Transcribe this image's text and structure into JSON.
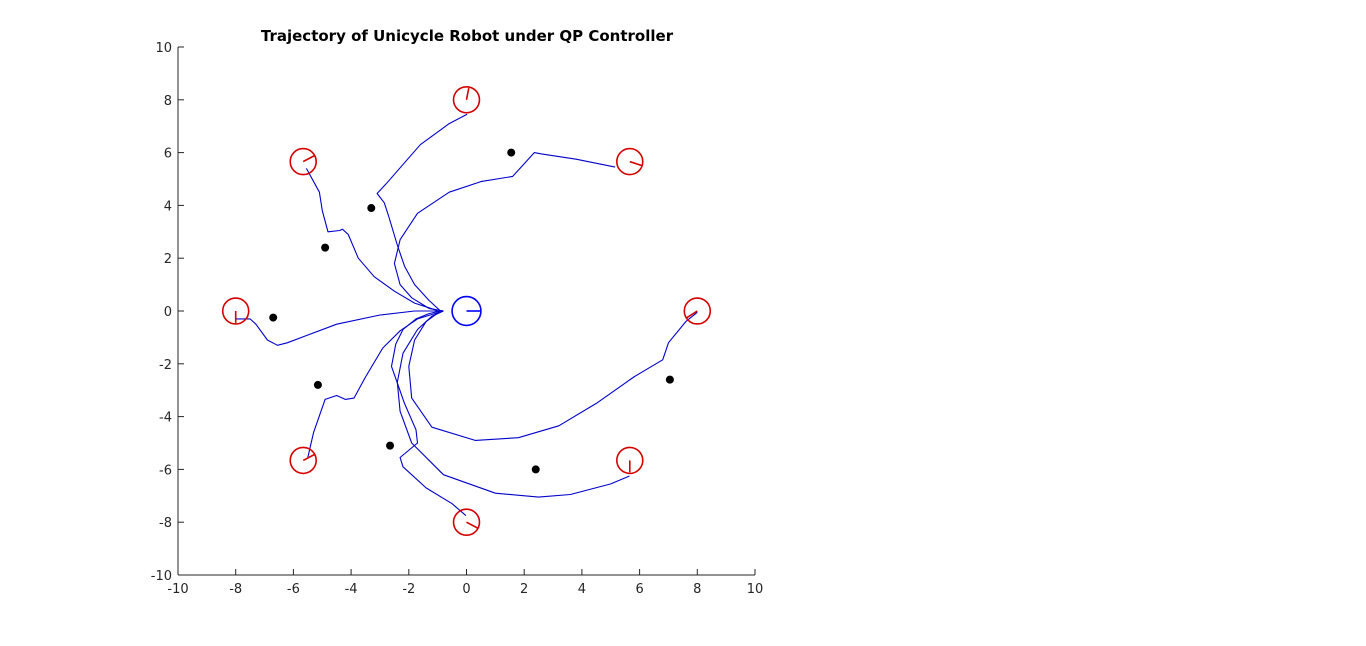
{
  "chart_data": {
    "type": "scatter",
    "title": "Trajectory of Unicycle Robot under QP Controller",
    "xlabel": "",
    "ylabel": "",
    "xlim": [
      -10,
      10
    ],
    "ylim": [
      -10,
      10
    ],
    "xticks": [
      "-10",
      "-8",
      "-6",
      "-4",
      "-2",
      "0",
      "2",
      "4",
      "6",
      "8",
      "10"
    ],
    "yticks": [
      "10",
      "8",
      "6",
      "4",
      "2",
      "0",
      "-2",
      "-4",
      "-6",
      "-8",
      "-10"
    ],
    "grid": false,
    "colors": {
      "trajectory": "#0000cc",
      "start_robot": "#d40000",
      "goal_robot": "#0000ff",
      "obstacle": "#000000"
    },
    "goal": {
      "x": 0,
      "y": 0,
      "radius": 0.5,
      "heading_deg": 0
    },
    "starts": [
      {
        "x": 0,
        "y": 8,
        "heading_deg": 80
      },
      {
        "x": 5.66,
        "y": 5.66,
        "heading_deg": -20
      },
      {
        "x": 8,
        "y": 0,
        "heading_deg": 215
      },
      {
        "x": 5.66,
        "y": -5.66,
        "heading_deg": -90
      },
      {
        "x": 0,
        "y": -8,
        "heading_deg": -30
      },
      {
        "x": -5.66,
        "y": -5.66,
        "heading_deg": 30
      },
      {
        "x": -8,
        "y": 0,
        "heading_deg": -90
      },
      {
        "x": -5.66,
        "y": 5.66,
        "heading_deg": 30
      }
    ],
    "obstacles": [
      {
        "x": 1.55,
        "y": 6.0
      },
      {
        "x": -3.3,
        "y": 3.9
      },
      {
        "x": -4.9,
        "y": 2.4
      },
      {
        "x": -6.7,
        "y": -0.25
      },
      {
        "x": -5.15,
        "y": -2.8
      },
      {
        "x": -2.65,
        "y": -5.1
      },
      {
        "x": 2.4,
        "y": -6.0
      },
      {
        "x": 7.05,
        "y": -2.6
      }
    ],
    "series": [
      {
        "x": [
          0.02,
          -0.6,
          -1.6,
          -2.8,
          -3.1,
          -2.85,
          -2.7,
          -2.4,
          -2.15,
          -1.8,
          -1.3,
          -0.9
        ],
        "y": [
          7.45,
          7.1,
          6.3,
          4.8,
          4.45,
          4.1,
          3.6,
          2.5,
          1.7,
          1.0,
          0.4,
          0.0
        ]
      },
      {
        "x": [
          5.15,
          3.8,
          2.6,
          2.35,
          1.6,
          0.5,
          -0.6,
          -1.7,
          -2.3,
          -2.5,
          -2.3,
          -1.9,
          -1.3,
          -0.8
        ],
        "y": [
          5.45,
          5.75,
          5.95,
          6.0,
          5.1,
          4.9,
          4.5,
          3.7,
          2.7,
          1.8,
          1.0,
          0.5,
          0.1,
          0.0
        ]
      },
      {
        "x": [
          8.0,
          7.6,
          7.0,
          6.8,
          5.8,
          4.5,
          3.2,
          1.8,
          0.3,
          -1.2,
          -1.9,
          -2.0,
          -1.8,
          -1.4,
          -0.9
        ],
        "y": [
          -0.05,
          -0.4,
          -1.2,
          -1.85,
          -2.5,
          -3.5,
          -4.35,
          -4.8,
          -4.9,
          -4.4,
          -3.3,
          -2.1,
          -1.1,
          -0.4,
          0.0
        ]
      },
      {
        "x": [
          5.65,
          5.0,
          3.6,
          2.5,
          1.0,
          -0.8,
          -1.9,
          -2.3,
          -2.4,
          -2.2,
          -1.7,
          -1.2,
          -0.8
        ],
        "y": [
          -6.25,
          -6.55,
          -6.95,
          -7.05,
          -6.9,
          -6.2,
          -5.0,
          -3.8,
          -2.7,
          -1.6,
          -0.7,
          -0.2,
          0.0
        ]
      },
      {
        "x": [
          -0.02,
          -0.5,
          -1.4,
          -2.2,
          -2.3,
          -1.7,
          -1.75,
          -2.15,
          -2.6,
          -2.45,
          -2.2,
          -1.75,
          -1.3,
          -0.9
        ],
        "y": [
          -7.75,
          -7.3,
          -6.7,
          -5.9,
          -5.55,
          -5.0,
          -4.5,
          -3.5,
          -2.1,
          -1.25,
          -0.7,
          -0.3,
          -0.1,
          0.0
        ]
      },
      {
        "x": [
          -5.5,
          -5.3,
          -4.9,
          -4.5,
          -4.2,
          -3.9,
          -3.5,
          -2.9,
          -2.3,
          -1.7,
          -1.1,
          -0.8
        ],
        "y": [
          -5.55,
          -4.6,
          -3.35,
          -3.2,
          -3.35,
          -3.3,
          -2.5,
          -1.4,
          -0.75,
          -0.3,
          -0.1,
          0.0
        ]
      },
      {
        "x": [
          -8.0,
          -7.5,
          -7.3,
          -6.9,
          -6.55,
          -6.2,
          -5.6,
          -4.5,
          -3.0,
          -1.8,
          -1.0
        ],
        "y": [
          -0.3,
          -0.3,
          -0.5,
          -1.1,
          -1.3,
          -1.2,
          -0.95,
          -0.5,
          -0.15,
          0.0,
          0.0
        ]
      },
      {
        "x": [
          -5.55,
          -5.1,
          -5.0,
          -4.8,
          -4.4,
          -4.3,
          -4.1,
          -3.75,
          -3.2,
          -2.5,
          -1.8,
          -1.1,
          -0.8
        ],
        "y": [
          5.4,
          4.5,
          3.8,
          3.0,
          3.05,
          3.1,
          2.9,
          2.0,
          1.3,
          0.75,
          0.3,
          0.05,
          0.0
        ]
      }
    ]
  }
}
